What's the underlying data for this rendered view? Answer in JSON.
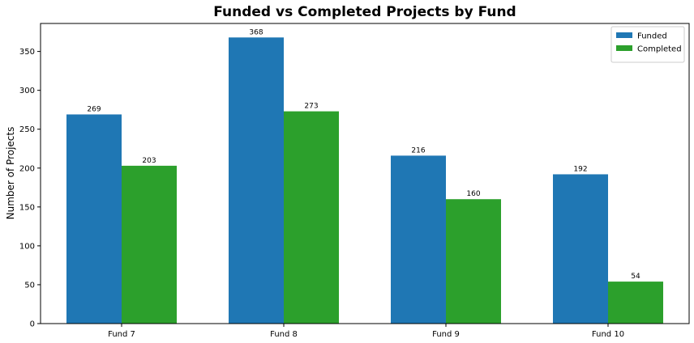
{
  "chart_data": {
    "type": "bar",
    "title": "Funded vs Completed Projects by Fund",
    "xlabel": "",
    "ylabel": "Number of Projects",
    "categories": [
      "Fund 7",
      "Fund 8",
      "Fund 9",
      "Fund 10"
    ],
    "series": [
      {
        "name": "Funded",
        "values": [
          269,
          368,
          216,
          192
        ],
        "color": "#1f77b4"
      },
      {
        "name": "Completed",
        "values": [
          203,
          273,
          160,
          54
        ],
        "color": "#2ca02c"
      }
    ],
    "ylim": [
      0,
      386
    ],
    "yticks": [
      0,
      50,
      100,
      150,
      200,
      250,
      300,
      350
    ],
    "grid": false,
    "legend_position": "top-right",
    "data_labels": true
  }
}
